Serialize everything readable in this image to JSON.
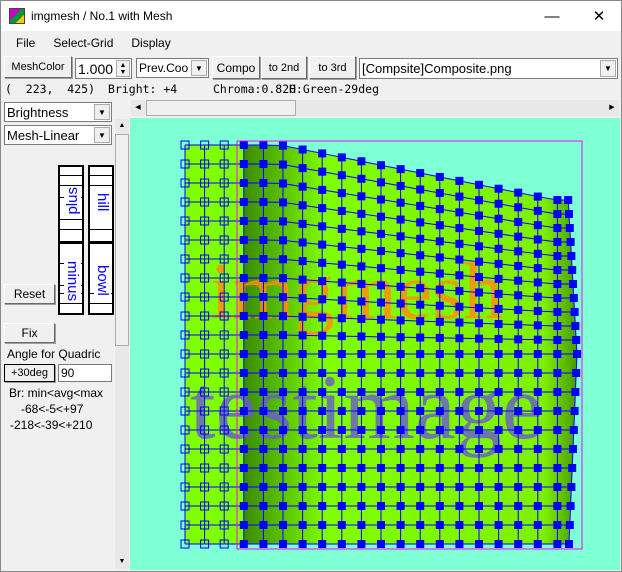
{
  "window": {
    "title": "imgmesh / No.1 with Mesh",
    "minimize": "—",
    "maximize": "☐",
    "close": "✕",
    "icon": "app-icon"
  },
  "menu": [
    "File",
    "Select-Grid",
    "Display"
  ],
  "toolbar": {
    "mesh_color": "MeshColor",
    "zoom_value": "1.000",
    "prev_coord": "Prev.Coo",
    "compo": "Compo",
    "to_2nd": "to 2nd",
    "to_3rd": "to 3rd",
    "file_select": "[Compsite]Composite.png"
  },
  "status": {
    "coords": "(  223,  425)",
    "bright": "Bright: +4",
    "chroma": "Chroma:0.820",
    "hue": "H:Green-29deg"
  },
  "left": {
    "mode": "Brightness",
    "mesh_type": "Mesh-Linear",
    "slider1_top": "plus",
    "slider1_bottom": "minus",
    "slider2_top": "hill",
    "slider2_bottom": "bowl",
    "reset": "Reset",
    "fix": "Fix",
    "angle_label": "Angle for Quadric",
    "angle_button": "+30deg",
    "angle_value": "90",
    "stats_header": "Br: min<avg<max",
    "stats_row1": "-68<-5<+97",
    "stats_row2": "-218<-39<+210"
  },
  "image": {
    "text1": "imgmesh",
    "text2": "testimage",
    "background": "#7fffd4",
    "green": "#80ff00",
    "mesh_color": "#0000ff",
    "frame_color": "#ff00ff",
    "text1_color": "#ff8c00",
    "text2_color": "#6a5acd"
  }
}
